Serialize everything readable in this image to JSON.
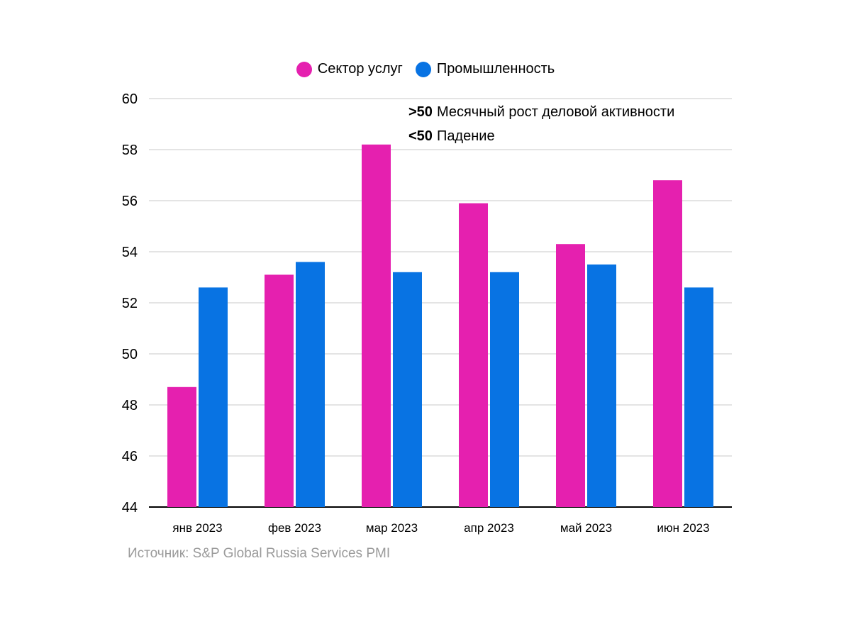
{
  "chart_data": {
    "type": "bar",
    "categories": [
      "янв 2023",
      "фев 2023",
      "мар 2023",
      "апр 2023",
      "май 2023",
      "июн 2023"
    ],
    "series": [
      {
        "name": "Сектор услуг",
        "color": "#e520af",
        "values": [
          48.7,
          53.1,
          58.2,
          55.9,
          54.3,
          56.8
        ]
      },
      {
        "name": "Промышленность",
        "color": "#0873e3",
        "values": [
          52.6,
          53.6,
          53.2,
          53.2,
          53.5,
          52.6
        ]
      }
    ],
    "ylim": [
      44,
      60
    ],
    "yticks": [
      "44",
      "46",
      "48",
      "50",
      "52",
      "54",
      "56",
      "58",
      "60"
    ],
    "grid": true,
    "legend_position": "top-center",
    "annotations": [
      {
        "marker": ">50",
        "text": "Месячный рост деловой активности"
      },
      {
        "marker": "<50",
        "text": "Падение"
      }
    ],
    "source": "Источник: S&P Global Russia Services PMI"
  }
}
